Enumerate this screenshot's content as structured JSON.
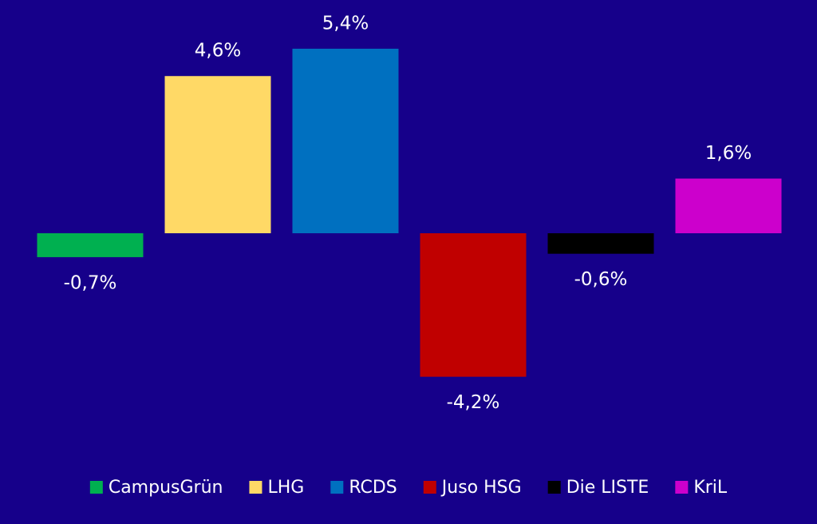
{
  "chart_data": {
    "type": "bar",
    "series": [
      {
        "name": "CampusGrün",
        "color": "#00b050",
        "values": [
          -0.7
        ],
        "value_labels": [
          "-0,7%"
        ]
      },
      {
        "name": "LHG",
        "color": "#ffd966",
        "values": [
          4.6
        ],
        "value_labels": [
          "4,6%"
        ]
      },
      {
        "name": "RCDS",
        "color": "#0070c0",
        "values": [
          5.4
        ],
        "value_labels": [
          "5,4%"
        ]
      },
      {
        "name": "Juso HSG",
        "color": "#c00000",
        "values": [
          -4.2
        ],
        "value_labels": [
          "-4,2%"
        ]
      },
      {
        "name": "Die LISTE",
        "color": "#000000",
        "values": [
          -0.6
        ],
        "value_labels": [
          "-0,6%"
        ]
      },
      {
        "name": "KriL",
        "color": "#cc00cc",
        "values": [
          1.6
        ],
        "value_labels": [
          "1,6%"
        ]
      }
    ]
  }
}
